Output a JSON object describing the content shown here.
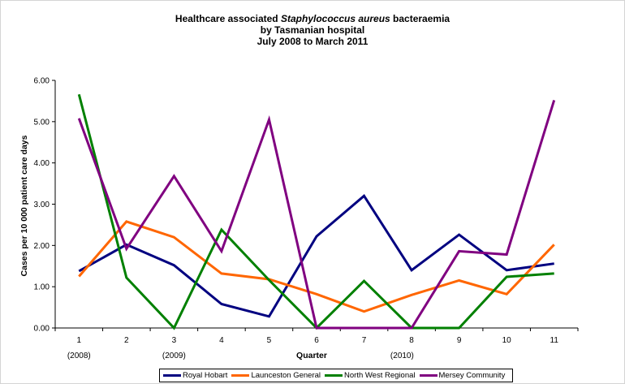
{
  "title": {
    "line1_pre": "Healthcare associated ",
    "line1_em": "Staphylococcus aureus",
    "line1_post": " bacteraemia",
    "line2": "by Tasmanian hospital",
    "line3": "July 2008 to March 2011"
  },
  "chart_data": {
    "type": "line",
    "title": "Healthcare associated Staphylococcus aureus bacteraemia by Tasmanian hospital July 2008 to March 2011",
    "xlabel": "Quarter",
    "ylabel": "Cases per 10 000 patient care days",
    "x": [
      1,
      2,
      3,
      4,
      5,
      6,
      7,
      8,
      9,
      10,
      11
    ],
    "ylim": [
      0,
      6
    ],
    "yticks": [
      "0.00",
      "1.00",
      "2.00",
      "3.00",
      "4.00",
      "5.00",
      "6.00"
    ],
    "year_labels": [
      {
        "x": 1,
        "label": "(2008)"
      },
      {
        "x": 3,
        "label": "(2009)"
      },
      {
        "x": 7.8,
        "label": "(2010)"
      }
    ],
    "grid": false,
    "legend_position": "bottom",
    "series": [
      {
        "name": "Royal Hobart",
        "color": "#000080",
        "values": [
          1.38,
          2.02,
          1.52,
          0.58,
          0.28,
          2.22,
          3.2,
          1.4,
          2.26,
          1.4,
          1.56
        ]
      },
      {
        "name": "Launceston General",
        "color": "#ff6600",
        "values": [
          1.25,
          2.58,
          2.2,
          1.32,
          1.18,
          0.82,
          0.4,
          0.8,
          1.15,
          0.82,
          2.02
        ]
      },
      {
        "name": "North West Regional",
        "color": "#008000",
        "values": [
          5.66,
          1.22,
          0.0,
          2.38,
          1.16,
          0.0,
          1.14,
          0.0,
          0.0,
          1.24,
          1.32
        ]
      },
      {
        "name": "Mersey Community",
        "color": "#800080",
        "values": [
          5.08,
          1.92,
          3.68,
          1.86,
          5.05,
          0.0,
          0.0,
          0.0,
          1.86,
          1.78,
          5.52
        ]
      }
    ]
  }
}
